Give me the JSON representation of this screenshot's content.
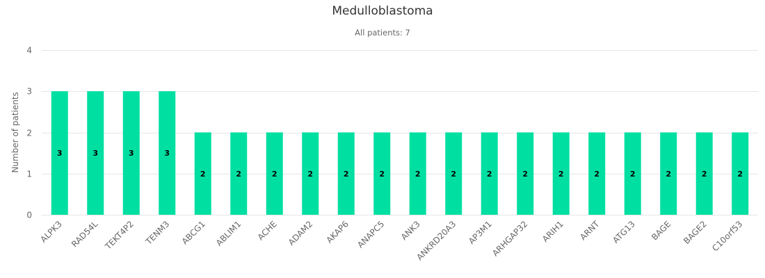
{
  "chart_data": {
    "type": "bar",
    "title": "Medulloblastoma",
    "subtitle": "All patients: 7",
    "xlabel": "",
    "ylabel": "Number of patients",
    "ylim": [
      0,
      4
    ],
    "yticks": [
      0,
      1,
      2,
      3,
      4
    ],
    "grid": true,
    "legend": "none",
    "bar_color": "#00dfa2",
    "categories": [
      "ALPK3",
      "RAD54L",
      "TEKT4P2",
      "TENM3",
      "ABCG1",
      "ABLIM1",
      "ACHE",
      "ADAM2",
      "AKAP6",
      "ANAPC5",
      "ANK3",
      "ANKRD20A3",
      "AP3M1",
      "ARHGAP32",
      "ARIH1",
      "ARNT",
      "ATG13",
      "BAGE",
      "BAGE2",
      "C10orf53"
    ],
    "values": [
      3,
      3,
      3,
      3,
      2,
      2,
      2,
      2,
      2,
      2,
      2,
      2,
      2,
      2,
      2,
      2,
      2,
      2,
      2,
      2
    ]
  }
}
